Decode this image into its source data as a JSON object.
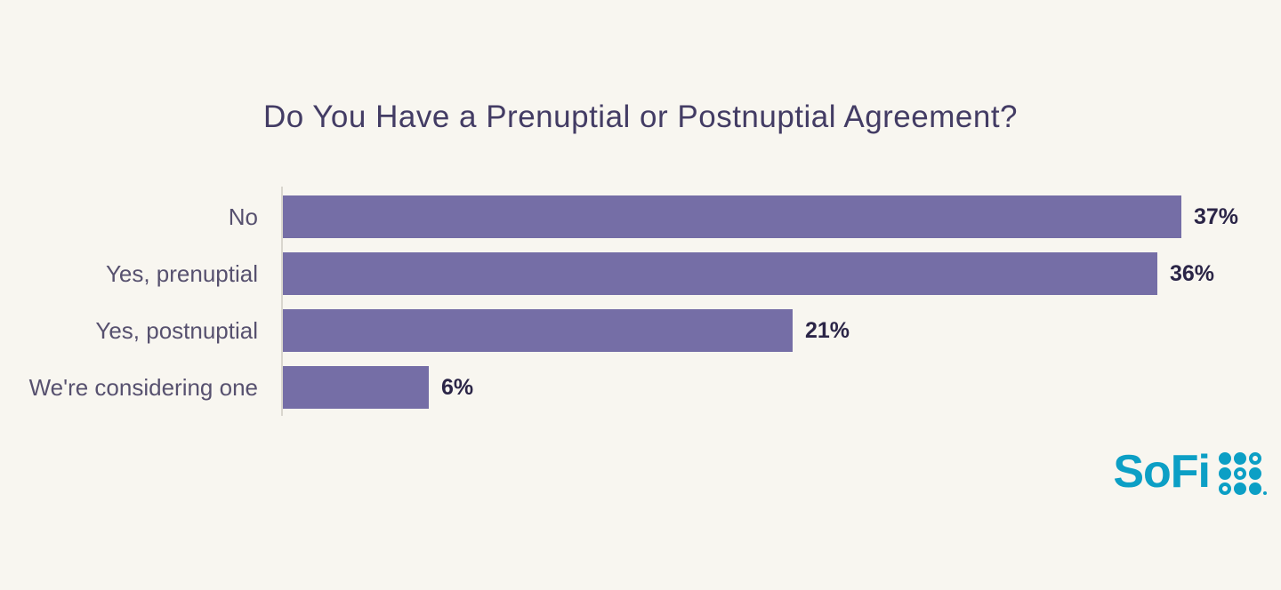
{
  "page": {
    "background": "#f8f6f0"
  },
  "chart_data": {
    "type": "bar",
    "orientation": "horizontal",
    "title": "Do You Have a Prenuptial or Postnuptial Agreement?",
    "categories": [
      "No",
      "Yes, prenuptial",
      "Yes, postnuptial",
      "We're considering one"
    ],
    "values": [
      37,
      36,
      21,
      6
    ],
    "value_labels": [
      "37%",
      "36%",
      "21%",
      "6%"
    ],
    "xlabel": "",
    "ylabel": "",
    "xlim": [
      0,
      37
    ],
    "grid": false,
    "legend": "none",
    "bar_color": "#756ea6"
  },
  "colors": {
    "background": "#f8f6f0",
    "title": "#433c64",
    "category_label": "#57516f",
    "value_label": "#2b2547",
    "axis_line": "#d9d6ce",
    "bar": "#756ea6",
    "logo": "#0c9fc5"
  },
  "branding": {
    "logo_text": "SoFi",
    "logo_icon": "sofi-dot-grid-icon",
    "dot_pattern": [
      [
        "filled",
        "filled",
        "ring"
      ],
      [
        "filled",
        "ring",
        "filled"
      ],
      [
        "ring",
        "filled",
        "filled"
      ]
    ]
  }
}
